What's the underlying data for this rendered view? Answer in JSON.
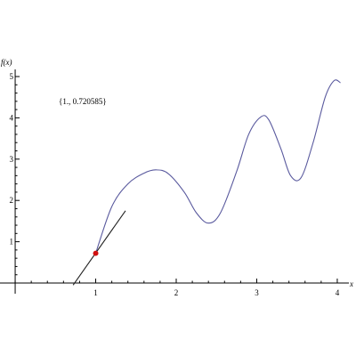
{
  "chart_data": {
    "type": "line",
    "xlabel": "x",
    "ylabel": "f(x)",
    "xlim": [
      -0.1,
      4.1
    ],
    "ylim": [
      -0.05,
      5.0
    ],
    "x_ticks": [
      1,
      2,
      3,
      4
    ],
    "x_minor_step": 0.2,
    "y_ticks": [
      1,
      2,
      3,
      4,
      5
    ],
    "y_minor_step": 0.2,
    "grid": false,
    "annotation": "{1., 0.720585}",
    "highlight_point": {
      "x": 1.0,
      "y": 0.720585
    },
    "series": [
      {
        "values_x": [
          0.0,
          0.7,
          1.0,
          1.2,
          1.4,
          1.6,
          1.75,
          1.9,
          2.1,
          2.25,
          2.4,
          2.55,
          2.75,
          2.9,
          3.05,
          3.15,
          3.3,
          3.42,
          3.55,
          3.7,
          3.85,
          3.96,
          4.04
        ],
        "values_y": [
          null,
          null,
          0.720585,
          1.85,
          2.4,
          2.66,
          2.74,
          2.65,
          2.2,
          1.7,
          1.45,
          1.7,
          2.7,
          3.6,
          4.02,
          3.95,
          3.25,
          2.6,
          2.55,
          3.4,
          4.5,
          4.9,
          4.85
        ]
      },
      {
        "values_x": [
          0.72,
          1.37
        ],
        "values_y": [
          -0.05,
          1.75
        ]
      }
    ],
    "colors": {
      "curve": "#5a5a9e",
      "tangent": "#222222",
      "point": "#d01010",
      "axis": "#000000"
    }
  }
}
